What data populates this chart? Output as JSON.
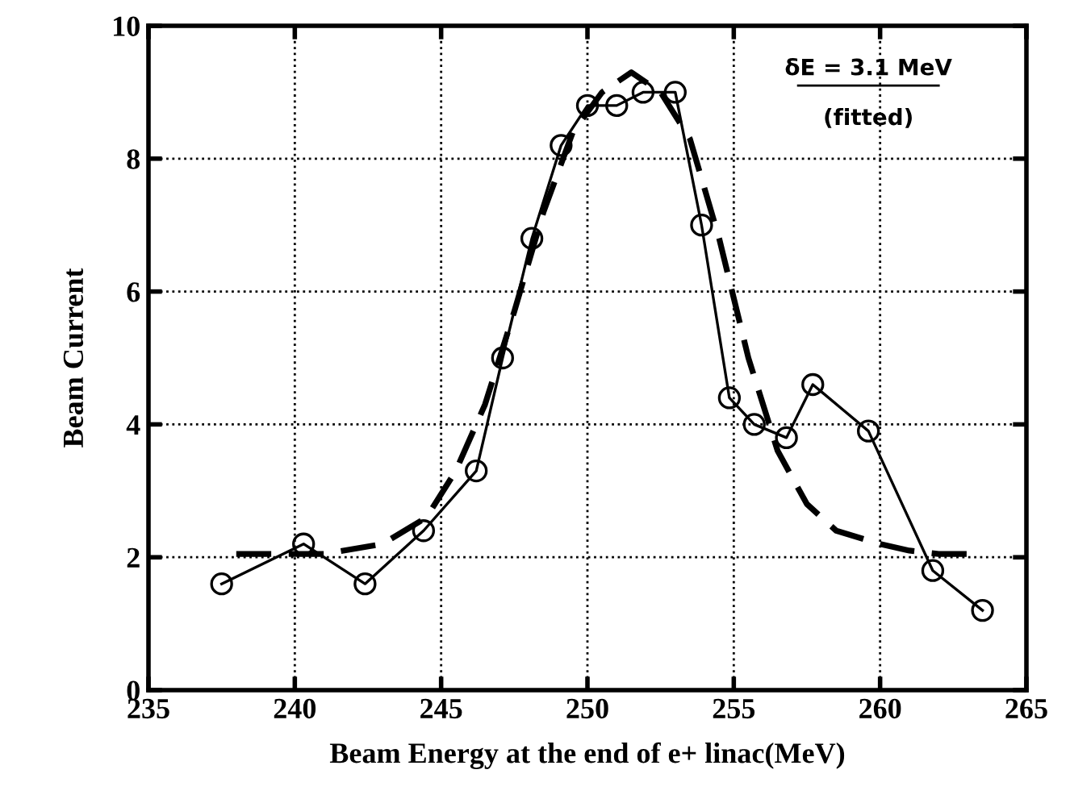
{
  "chart_data": {
    "type": "line",
    "xlabel": "Beam Energy at the end of e+ linac(MeV)",
    "ylabel": "Beam Current",
    "xlim": [
      235,
      265
    ],
    "xticks": [
      235,
      240,
      245,
      250,
      255,
      260,
      265
    ],
    "ylim": [
      0,
      10
    ],
    "yticks": [
      0,
      2,
      4,
      6,
      8,
      10
    ],
    "grid": true,
    "annotations": [
      "δE = 3.1 MeV",
      "(fitted)"
    ],
    "series": [
      {
        "color": "#000000",
        "marker": "circle",
        "line_style": "solid",
        "x": [
          237.5,
          240.3,
          242.4,
          244.4,
          246.2,
          247.1,
          248.1,
          249.1,
          250.0,
          251.0,
          251.9,
          253.0,
          253.9,
          254.85,
          255.7,
          256.8,
          257.7,
          259.6,
          261.8,
          263.5
        ],
        "values": [
          1.6,
          2.2,
          1.6,
          2.4,
          3.3,
          5.0,
          6.8,
          8.2,
          8.8,
          8.8,
          9.0,
          9.0,
          7.0,
          4.4,
          4.0,
          3.8,
          4.6,
          3.9,
          1.8,
          1.2
        ]
      },
      {
        "color": "#000000",
        "marker": "none",
        "line_style": "dashed",
        "x": [
          238,
          241,
          243,
          244.5,
          245.5,
          246.5,
          247.5,
          248.5,
          249.5,
          250.5,
          251.5,
          252.5,
          253.5,
          254.5,
          255.5,
          256.5,
          257.5,
          258.5,
          260,
          261,
          262,
          263.5
        ],
        "values": [
          2.05,
          2.05,
          2.2,
          2.6,
          3.3,
          4.3,
          5.7,
          7.2,
          8.4,
          9.0,
          9.3,
          9.0,
          8.3,
          6.8,
          5.0,
          3.6,
          2.8,
          2.4,
          2.2,
          2.1,
          2.05,
          2.05
        ]
      }
    ]
  }
}
